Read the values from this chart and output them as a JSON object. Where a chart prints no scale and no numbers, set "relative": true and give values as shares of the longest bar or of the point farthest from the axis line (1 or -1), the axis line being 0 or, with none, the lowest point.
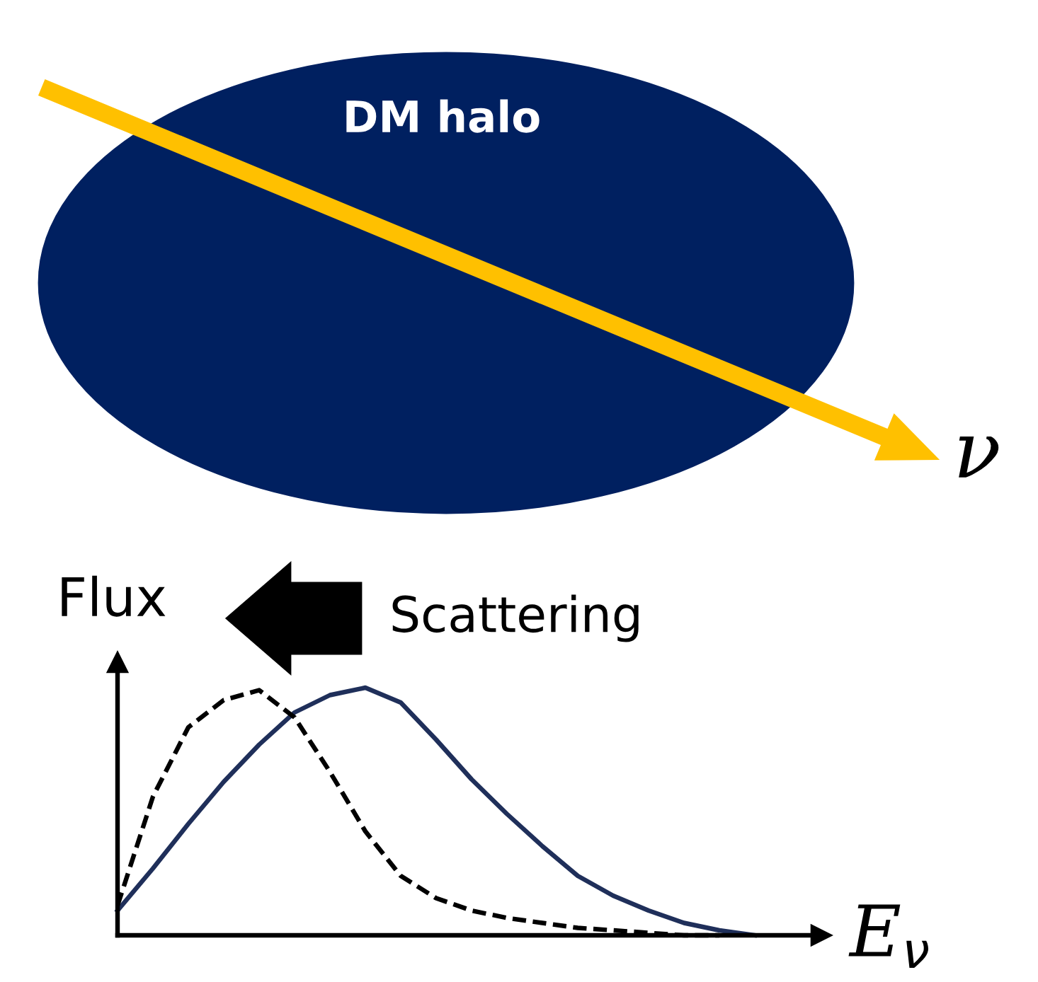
{
  "chart_data": {
    "type": "line",
    "relative": true,
    "xlabel": "E$_{ν}$",
    "ylabel": "Flux",
    "annotations": [
      "DM halo",
      "ν",
      "Scattering"
    ],
    "categories": [
      null,
      null,
      null,
      null,
      null,
      null,
      null,
      null,
      null,
      null,
      null,
      null,
      null,
      null,
      null,
      null,
      null,
      null,
      null
    ],
    "series": [
      {
        "color": "#1f2f5a",
        "line_style": "solid",
        "values": [
          0.1,
          0.27,
          0.45,
          0.62,
          0.77,
          0.9,
          0.97,
          1.0,
          0.94,
          0.79,
          0.63,
          0.49,
          0.36,
          0.24,
          0.16,
          0.1,
          0.05,
          0.02,
          0
        ]
      },
      {
        "color": "#000000",
        "line_style": "dashed",
        "values": [
          0.12,
          0.56,
          0.84,
          0.95,
          0.99,
          0.88,
          0.66,
          0.42,
          0.24,
          0.15,
          0.1,
          0.07,
          0.05,
          0.03,
          0.02,
          0.01,
          0,
          0,
          null
        ]
      }
    ],
    "legend": false,
    "marker": "none"
  }
}
